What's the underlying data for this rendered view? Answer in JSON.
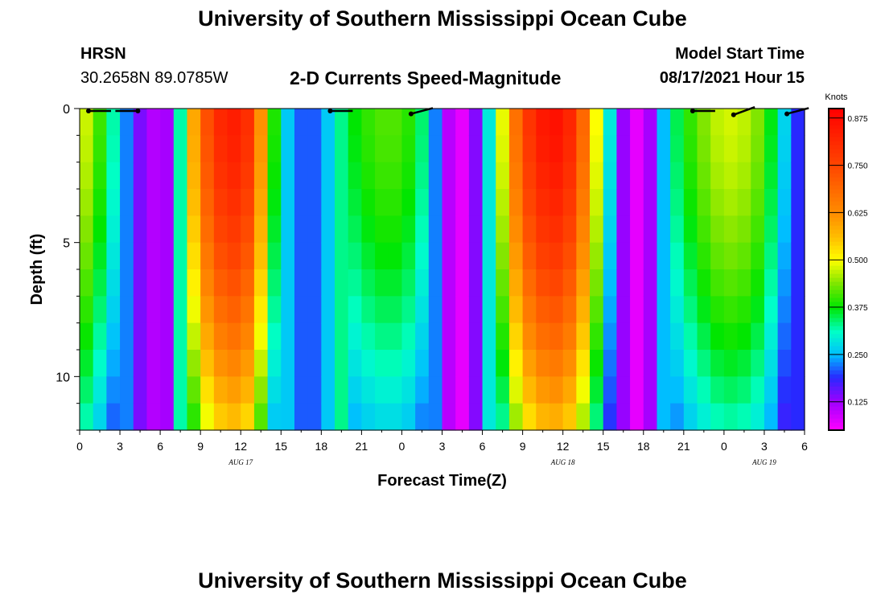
{
  "header": {
    "title": "University of Southern Mississippi Ocean Cube",
    "station": "HRSN",
    "coords": "30.2658N  89.0785W",
    "subtitle": "2-D Currents Speed-Magnitude",
    "start_label": "Model Start Time",
    "start_value": "08/17/2021 Hour 15",
    "footer_title": "University of Southern Mississippi Ocean Cube"
  },
  "chart_data": {
    "type": "heatmap",
    "title": "2-D Currents Speed-Magnitude",
    "xlabel": "Forecast Time(Z)",
    "ylabel": "Depth (ft)",
    "x_ticks": [
      "0",
      "3",
      "6",
      "9",
      "12",
      "15",
      "18",
      "21",
      "0",
      "3",
      "6",
      "9",
      "12",
      "15",
      "18",
      "21",
      "0",
      "3",
      "6"
    ],
    "x_range_hours": [
      0,
      54
    ],
    "date_labels": [
      {
        "label": "AUG 17",
        "hour": 12
      },
      {
        "label": "AUG 18",
        "hour": 36
      },
      {
        "label": "AUG 19",
        "hour": 51
      }
    ],
    "y_ticks": [
      0,
      5,
      10
    ],
    "ylim": [
      0,
      12
    ],
    "colorbar": {
      "units": "Knots",
      "ticks": [
        0.875,
        0.75,
        0.625,
        0.5,
        0.375,
        0.25,
        0.125
      ],
      "range": [
        0.05,
        0.9
      ]
    },
    "speed_by_hour_surface": [
      {
        "h": 0,
        "v": 0.5
      },
      {
        "h": 1,
        "v": 0.45
      },
      {
        "h": 2,
        "v": 0.36
      },
      {
        "h": 3,
        "v": 0.28
      },
      {
        "h": 4,
        "v": 0.17
      },
      {
        "h": 5,
        "v": 0.12
      },
      {
        "h": 6,
        "v": 0.1
      },
      {
        "h": 7,
        "v": 0.14
      },
      {
        "h": 8,
        "v": 0.5
      },
      {
        "h": 9,
        "v": 0.68
      },
      {
        "h": 10,
        "v": 0.79
      },
      {
        "h": 11,
        "v": 0.84
      },
      {
        "h": 12,
        "v": 0.84
      },
      {
        "h": 13,
        "v": 0.76
      },
      {
        "h": 14,
        "v": 0.48
      },
      {
        "h": 15,
        "v": 0.3
      },
      {
        "h": 16,
        "v": 0.22
      },
      {
        "h": 17,
        "v": 0.2
      },
      {
        "h": 18,
        "v": 0.22
      },
      {
        "h": 19,
        "v": 0.3
      },
      {
        "h": 20,
        "v": 0.36
      },
      {
        "h": 21,
        "v": 0.39
      },
      {
        "h": 22,
        "v": 0.41
      },
      {
        "h": 23,
        "v": 0.42
      },
      {
        "h": 24,
        "v": 0.41
      },
      {
        "h": 25,
        "v": 0.38
      },
      {
        "h": 26,
        "v": 0.3
      },
      {
        "h": 27,
        "v": 0.15
      },
      {
        "h": 28,
        "v": 0.06
      },
      {
        "h": 29,
        "v": 0.08
      },
      {
        "h": 30,
        "v": 0.2
      },
      {
        "h": 31,
        "v": 0.38
      },
      {
        "h": 32,
        "v": 0.6
      },
      {
        "h": 33,
        "v": 0.75
      },
      {
        "h": 34,
        "v": 0.83
      },
      {
        "h": 35,
        "v": 0.87
      },
      {
        "h": 36,
        "v": 0.86
      },
      {
        "h": 37,
        "v": 0.78
      },
      {
        "h": 38,
        "v": 0.6
      },
      {
        "h": 39,
        "v": 0.4
      },
      {
        "h": 40,
        "v": 0.18
      },
      {
        "h": 41,
        "v": 0.08
      },
      {
        "h": 42,
        "v": 0.06
      },
      {
        "h": 43,
        "v": 0.18
      },
      {
        "h": 44,
        "v": 0.32
      },
      {
        "h": 45,
        "v": 0.38
      },
      {
        "h": 46,
        "v": 0.42
      },
      {
        "h": 47,
        "v": 0.46
      },
      {
        "h": 48,
        "v": 0.48
      },
      {
        "h": 49,
        "v": 0.48
      },
      {
        "h": 50,
        "v": 0.46
      },
      {
        "h": 51,
        "v": 0.42
      },
      {
        "h": 52,
        "v": 0.32
      },
      {
        "h": 53,
        "v": 0.22
      },
      {
        "h": 54,
        "v": 0.16
      }
    ],
    "vectors": [
      {
        "h": 1.5,
        "d": 0,
        "dir": 180
      },
      {
        "h": 3.5,
        "d": 0,
        "dir": 0
      },
      {
        "h": 19.5,
        "d": 0,
        "dir": 180
      },
      {
        "h": 25.5,
        "d": 0,
        "dir": 195
      },
      {
        "h": 46.5,
        "d": 0,
        "dir": 180
      },
      {
        "h": 49.5,
        "d": 0,
        "dir": 200
      },
      {
        "h": 53.5,
        "d": 0,
        "dir": 195
      }
    ]
  }
}
